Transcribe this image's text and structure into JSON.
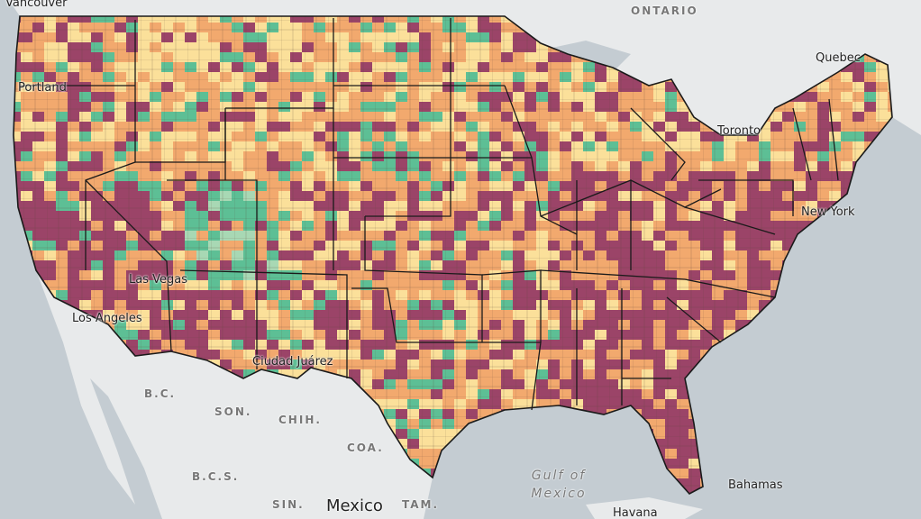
{
  "labels": {
    "vancouver": "Vancouver",
    "ontario": "ONTARIO",
    "quebec": "Quebec",
    "toronto": "Toronto",
    "portland": "Portland",
    "new_york": "New York",
    "las_vegas": "Las Vegas",
    "los_angeles": "Los Angeles",
    "ciudad_juarez": "Ciudad Juárez",
    "bc": "B.C.",
    "son": "SON.",
    "chih": "CHIH.",
    "coa": "COA.",
    "bcs": "B.C.S.",
    "sin": "SIN.",
    "tam": "TAM.",
    "mexico": "Mexico",
    "gulf_line1": "Gulf of",
    "gulf_line2": "Mexico",
    "bahamas": "Bahamas",
    "havana": "Havana"
  },
  "colors": {
    "background": "#d9dde0",
    "land": "#e8eaeb",
    "water": "#c4ccd2",
    "state_border": "#1a1a1a",
    "county_border": "#5a4a3a",
    "palette": [
      "#9b4468",
      "#f2a96e",
      "#fbe09a",
      "#5dbf95",
      "#a8d8b4"
    ]
  },
  "layers": {
    "base": "light-gray-basemap",
    "overlay": "county-choropleth"
  }
}
